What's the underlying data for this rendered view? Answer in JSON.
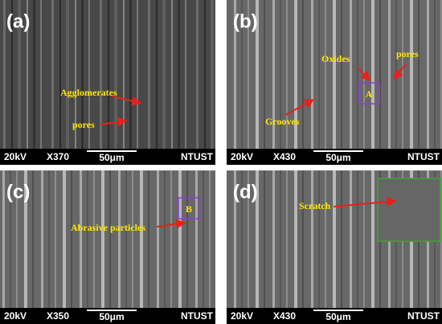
{
  "panels": [
    {
      "label": "(a)",
      "annotations": [
        {
          "text": "Agglomerates"
        },
        {
          "text": "pores"
        }
      ],
      "info": {
        "voltage": "20kV",
        "magnification": "X370",
        "scale": "50μm",
        "lab": "NTUST"
      }
    },
    {
      "label": "(b)",
      "annotations": [
        {
          "text": "Oxides"
        },
        {
          "text": "pores"
        },
        {
          "text": "Grooves"
        },
        {
          "text": "A"
        }
      ],
      "info": {
        "voltage": "20kV",
        "magnification": "X430",
        "scale": "50μm",
        "lab": "NTUST"
      }
    },
    {
      "label": "(c)",
      "annotations": [
        {
          "text": "Abrasive particles"
        },
        {
          "text": "B"
        }
      ],
      "info": {
        "voltage": "20kV",
        "magnification": "X350",
        "scale": "50μm",
        "lab": "NTUST"
      }
    },
    {
      "label": "(d)",
      "annotations": [
        {
          "text": "Scratch"
        }
      ],
      "info": {
        "voltage": "20kV",
        "magnification": "X430",
        "scale": "50μm",
        "lab": "NTUST"
      }
    }
  ]
}
